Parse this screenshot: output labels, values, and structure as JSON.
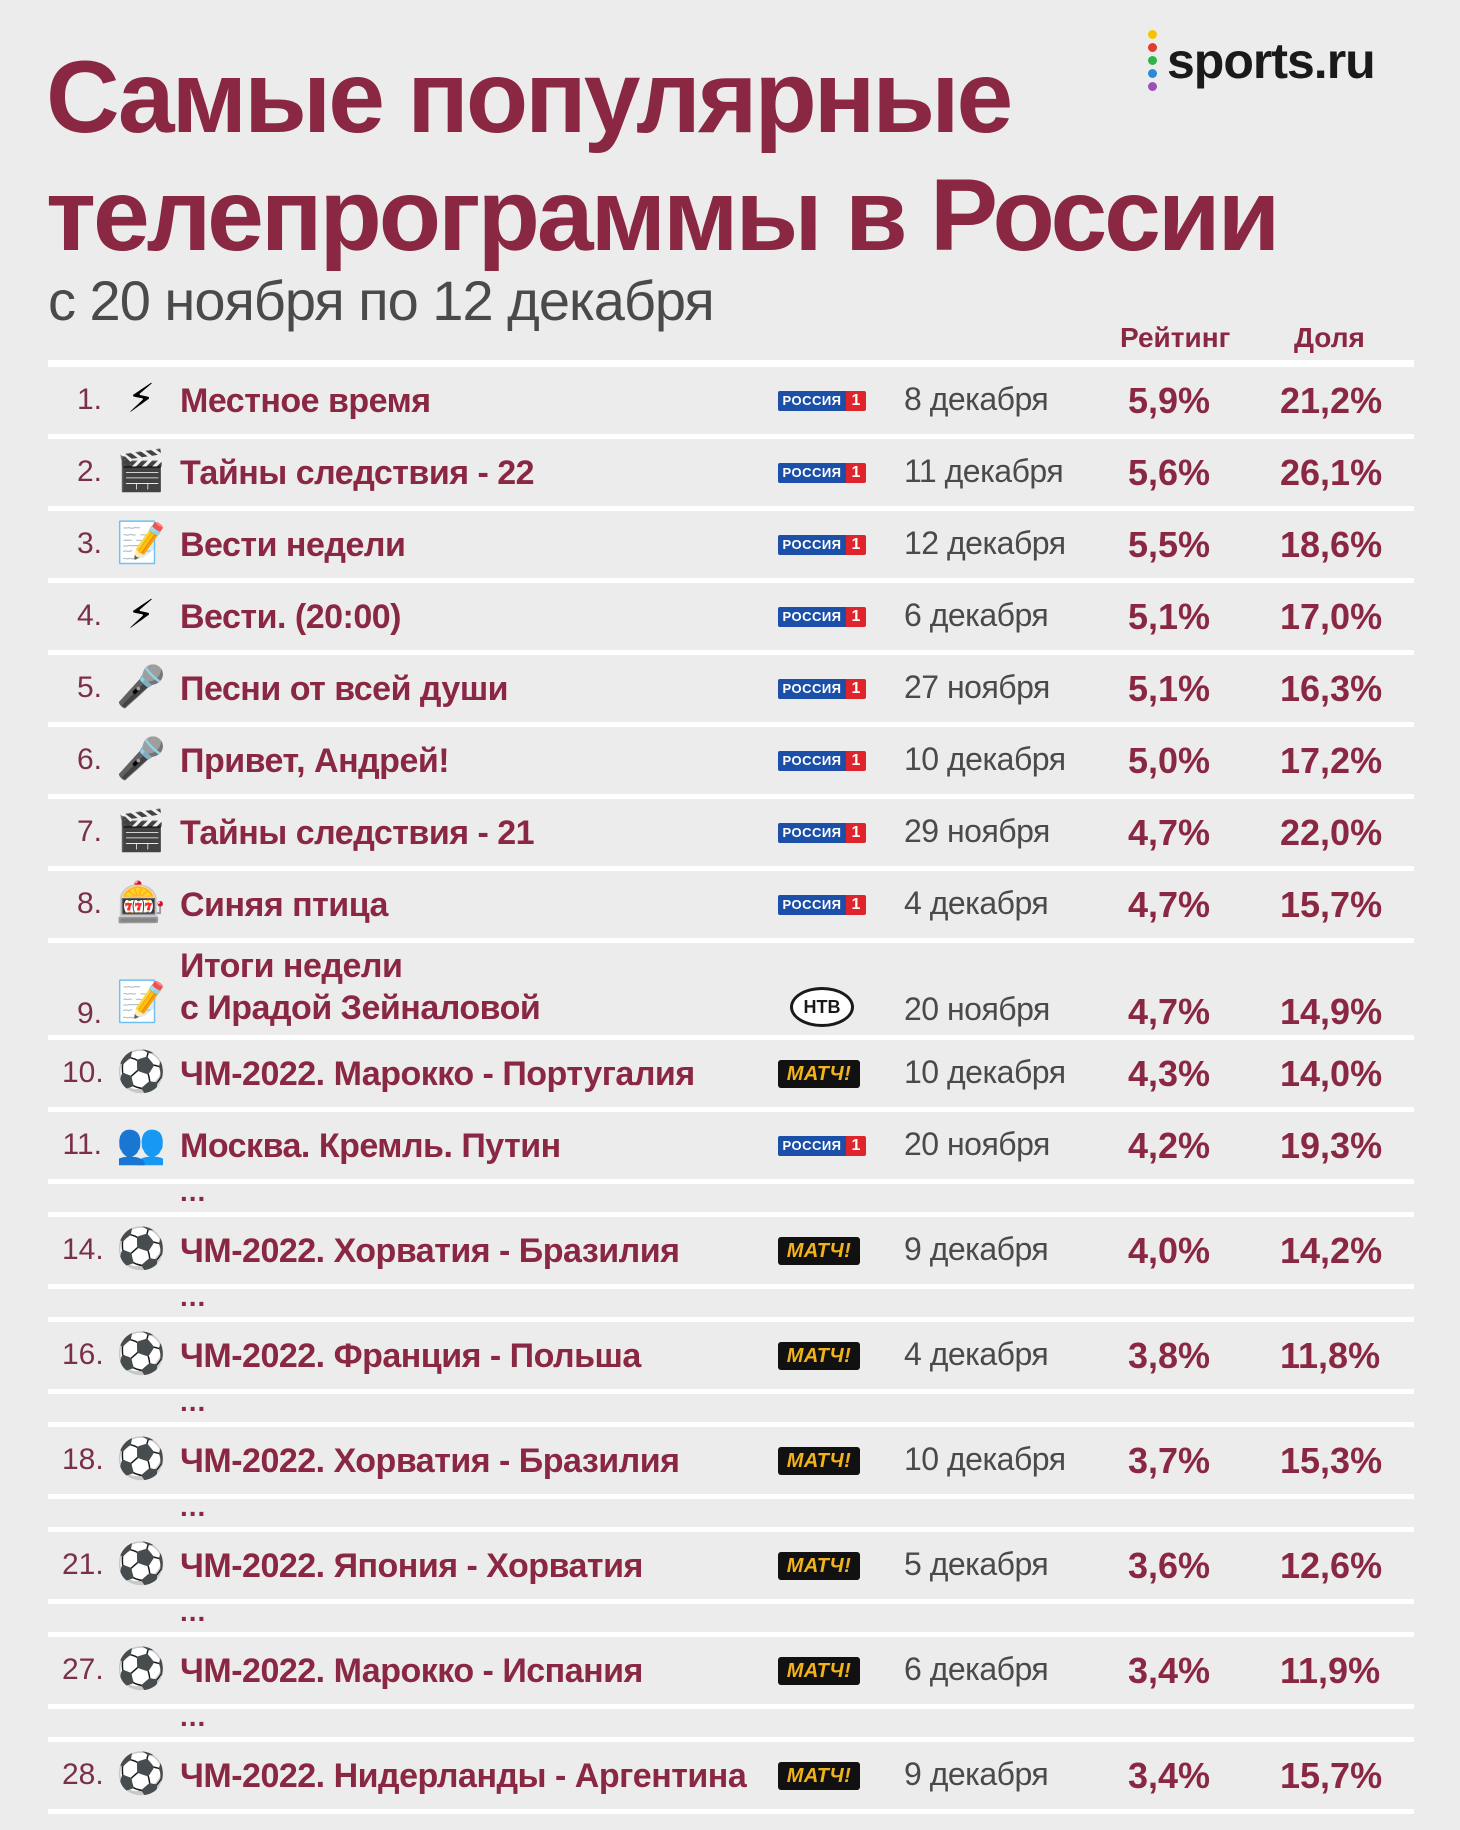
{
  "header": {
    "title_line1": "Самые популярные",
    "title_line2": "телепрограммы в России",
    "subtitle": "с 20 ноября по 12 декабря",
    "logo_text": "sports.ru",
    "logo_dot_colors": [
      "#f5c400",
      "#e23a2f",
      "#2fb34a",
      "#2a8ad8",
      "#9b4fb8"
    ]
  },
  "columns": {
    "rating": "Рейтинг",
    "share": "Доля"
  },
  "channel_labels": {
    "rossiya_word": "РОССИЯ",
    "rossiya_num": "1",
    "match": "МАТЧ!",
    "ntv": "НТВ"
  },
  "ellipsis": "...",
  "rows": [
    {
      "num": "1.",
      "icon": "lightning-icon",
      "glyph": "⚡",
      "lines": [
        "Местное время"
      ],
      "channel": "rossiya",
      "date": "8 декабря",
      "rating": "5,9%",
      "share": "21,2%"
    },
    {
      "num": "2.",
      "icon": "film-clapper-icon",
      "glyph": "🎬",
      "lines": [
        "Тайны следствия - 22"
      ],
      "channel": "rossiya",
      "date": "11 декабря",
      "rating": "5,6%",
      "share": "26,1%"
    },
    {
      "num": "3.",
      "icon": "memo-pencil-icon",
      "glyph": "📝",
      "lines": [
        "Вести недели"
      ],
      "channel": "rossiya",
      "date": "12 декабря",
      "rating": "5,5%",
      "share": "18,6%"
    },
    {
      "num": "4.",
      "icon": "lightning-icon",
      "glyph": "⚡",
      "lines": [
        "Вести. (20:00)"
      ],
      "channel": "rossiya",
      "date": "6 декабря",
      "rating": "5,1%",
      "share": "17,0%"
    },
    {
      "num": "5.",
      "icon": "microphone-icon",
      "glyph": "🎤",
      "lines": [
        "Песни от всей души"
      ],
      "channel": "rossiya",
      "date": "27 ноября",
      "rating": "5,1%",
      "share": "16,3%"
    },
    {
      "num": "6.",
      "icon": "microphone-icon",
      "glyph": "🎤",
      "lines": [
        "Привет, Андрей!"
      ],
      "channel": "rossiya",
      "date": "10 декабря",
      "rating": "5,0%",
      "share": "17,2%"
    },
    {
      "num": "7.",
      "icon": "film-clapper-icon",
      "glyph": "🎬",
      "lines": [
        "Тайны следствия - 21"
      ],
      "channel": "rossiya",
      "date": "29 ноября",
      "rating": "4,7%",
      "share": "22,0%"
    },
    {
      "num": "8.",
      "icon": "slot-machine-icon",
      "glyph": "🎰",
      "lines": [
        "Синяя птица"
      ],
      "channel": "rossiya",
      "date": "4 декабря",
      "rating": "4,7%",
      "share": "15,7%"
    },
    {
      "num": "9.",
      "icon": "memo-pencil-icon",
      "glyph": "📝",
      "lines": [
        "Итоги недели",
        "с Ирадой Зейналовой"
      ],
      "channel": "ntv",
      "date": "20 ноября",
      "rating": "4,7%",
      "share": "14,9%"
    },
    {
      "num": "10.",
      "icon": "soccer-ball-icon",
      "glyph": "⚽",
      "lines": [
        "ЧМ-2022. Марокко - Португалия"
      ],
      "channel": "match",
      "date": "10 декабря",
      "rating": "4,3%",
      "share": "14,0%"
    },
    {
      "num": "11.",
      "icon": "people-icon",
      "glyph": "👥",
      "lines": [
        "Москва. Кремль. Путин"
      ],
      "channel": "rossiya",
      "date": "20 ноября",
      "rating": "4,2%",
      "share": "19,3%",
      "gap_after": true
    },
    {
      "num": "14.",
      "icon": "soccer-ball-icon",
      "glyph": "⚽",
      "lines": [
        "ЧМ-2022. Хорватия - Бразилия"
      ],
      "channel": "match",
      "date": "9 декабря",
      "rating": "4,0%",
      "share": "14,2%",
      "gap_after": true
    },
    {
      "num": "16.",
      "icon": "soccer-ball-icon",
      "glyph": "⚽",
      "lines": [
        "ЧМ-2022. Франция - Польша"
      ],
      "channel": "match",
      "date": "4 декабря",
      "rating": "3,8%",
      "share": "11,8%",
      "gap_after": true
    },
    {
      "num": "18.",
      "icon": "soccer-ball-icon",
      "glyph": "⚽",
      "lines": [
        "ЧМ-2022. Хорватия - Бразилия"
      ],
      "channel": "match",
      "date": "10 декабря",
      "rating": "3,7%",
      "share": "15,3%",
      "gap_after": true
    },
    {
      "num": "21.",
      "icon": "soccer-ball-icon",
      "glyph": "⚽",
      "lines": [
        "ЧМ-2022. Япония - Хорватия"
      ],
      "channel": "match",
      "date": "5 декабря",
      "rating": "3,6%",
      "share": "12,6%",
      "gap_after": true
    },
    {
      "num": "27.",
      "icon": "soccer-ball-icon",
      "glyph": "⚽",
      "lines": [
        "ЧМ-2022. Марокко - Испания"
      ],
      "channel": "match",
      "date": "6 декабря",
      "rating": "3,4%",
      "share": "11,9%",
      "gap_after": true
    },
    {
      "num": "28.",
      "icon": "soccer-ball-icon",
      "glyph": "⚽",
      "lines": [
        "ЧМ-2022. Нидерланды - Аргентина"
      ],
      "channel": "match",
      "date": "9 декабря",
      "rating": "3,4%",
      "share": "15,7%"
    }
  ]
}
